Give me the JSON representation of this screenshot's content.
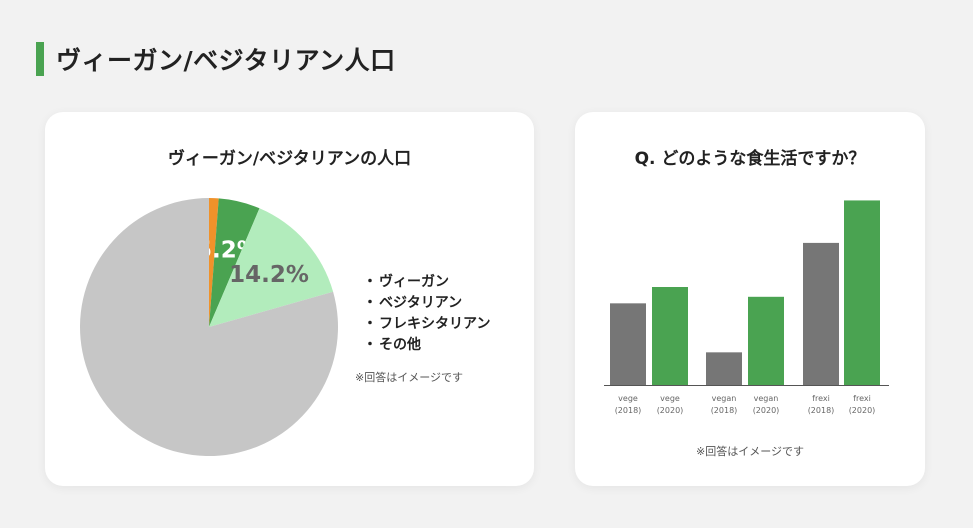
{
  "page": {
    "title": "ヴィーガン/ベジタリアン人口"
  },
  "pie_card": {
    "title": "ヴィーガン/ベジタリアンの人口",
    "legend": [
      {
        "label": "ヴィーガン"
      },
      {
        "label": "ベジタリアン"
      },
      {
        "label": "フレキシタリアン"
      },
      {
        "label": "その他"
      }
    ],
    "note": "※回答はイメージです"
  },
  "bar_card": {
    "title": "Q. どのような食生活ですか？",
    "note": "※回答はイメージです"
  },
  "colors": {
    "accent": "#4aa351",
    "vegan": "#f0922a",
    "vegetarian": "#4aa351",
    "flexitarian": "#b2ecbc",
    "other": "#c6c6c6",
    "bar2018": "#767676",
    "bar2020": "#4aa351"
  },
  "chart_data": [
    {
      "type": "pie",
      "title": "ヴィーガン/ベジタリアンの人口",
      "slices": [
        {
          "name": "ヴィーガン",
          "value": 1.2,
          "label": ""
        },
        {
          "name": "ベジタリアン",
          "value": 5.2,
          "label": "5.2%"
        },
        {
          "name": "フレキシタリアン",
          "value": 14.2,
          "label": "14.2%"
        },
        {
          "name": "その他",
          "value": 79.4,
          "label": ""
        }
      ]
    },
    {
      "type": "bar",
      "title": "Q. どのような食生活ですか？",
      "categories": [
        "vege\n(2018)",
        "vege\n(2020)",
        "vegan\n(2018)",
        "vegan\n(2020)",
        "frexi\n(2018)",
        "frexi\n(2020)"
      ],
      "values": [
        5,
        6,
        2,
        5.4,
        8.7,
        11.3
      ],
      "ylim": [
        0,
        12
      ]
    }
  ]
}
